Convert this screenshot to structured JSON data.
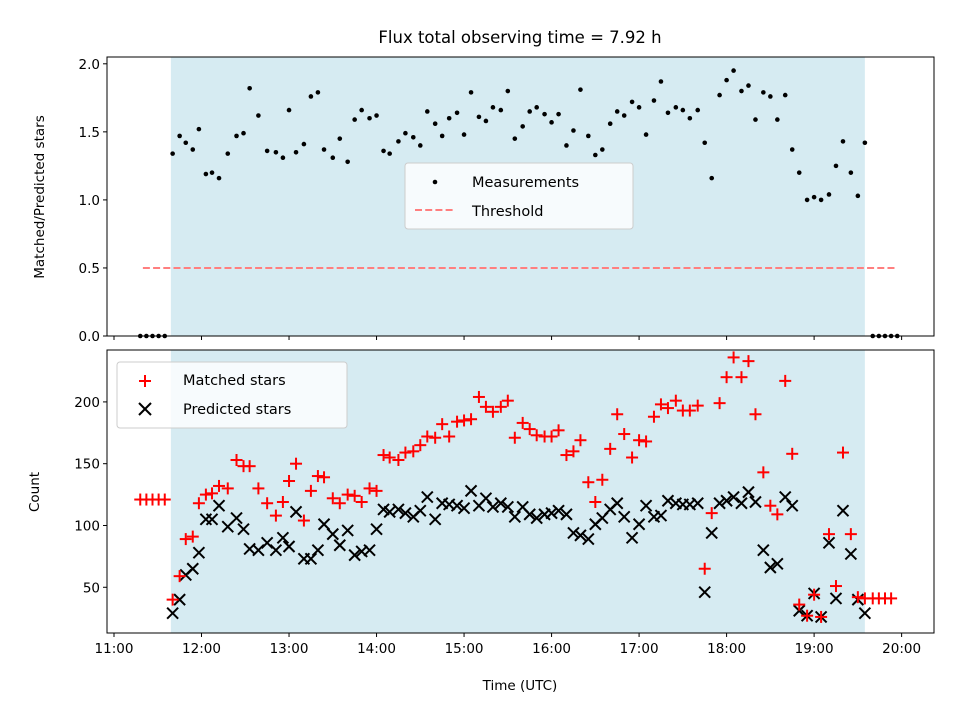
{
  "title": "Flux total observing time = 7.92 h",
  "chart_data": [
    {
      "type": "scatter",
      "ylabel": "Matched/Predicted stars",
      "xlim": [
        10.92,
        20.37
      ],
      "ylim": [
        0,
        2.05
      ],
      "yticks": [
        0.0,
        0.5,
        1.0,
        1.5,
        2.0
      ],
      "ytick_labels": [
        "0.0",
        "0.5",
        "1.0",
        "1.5",
        "2.0"
      ],
      "shaded_span": [
        11.65,
        19.58
      ],
      "shade_color": "#add8e6",
      "legend_position": "center",
      "series": [
        {
          "name": "Measurements",
          "marker": "dot",
          "color": "#000000",
          "points": [
            [
              11.3,
              0
            ],
            [
              11.37,
              0
            ],
            [
              11.44,
              0
            ],
            [
              11.51,
              0
            ],
            [
              11.58,
              0
            ],
            [
              11.67,
              1.34
            ],
            [
              11.75,
              1.47
            ],
            [
              11.82,
              1.42
            ],
            [
              11.9,
              1.37
            ],
            [
              11.97,
              1.52
            ],
            [
              12.05,
              1.19
            ],
            [
              12.12,
              1.2
            ],
            [
              12.2,
              1.16
            ],
            [
              12.3,
              1.34
            ],
            [
              12.4,
              1.47
            ],
            [
              12.48,
              1.49
            ],
            [
              12.55,
              1.82
            ],
            [
              12.65,
              1.62
            ],
            [
              12.75,
              1.36
            ],
            [
              12.85,
              1.35
            ],
            [
              12.93,
              1.31
            ],
            [
              13.0,
              1.66
            ],
            [
              13.08,
              1.35
            ],
            [
              13.17,
              1.41
            ],
            [
              13.25,
              1.76
            ],
            [
              13.33,
              1.79
            ],
            [
              13.4,
              1.37
            ],
            [
              13.5,
              1.31
            ],
            [
              13.58,
              1.45
            ],
            [
              13.67,
              1.28
            ],
            [
              13.75,
              1.59
            ],
            [
              13.83,
              1.66
            ],
            [
              13.92,
              1.6
            ],
            [
              14.0,
              1.62
            ],
            [
              14.08,
              1.36
            ],
            [
              14.15,
              1.34
            ],
            [
              14.25,
              1.43
            ],
            [
              14.33,
              1.49
            ],
            [
              14.42,
              1.46
            ],
            [
              14.5,
              1.4
            ],
            [
              14.58,
              1.65
            ],
            [
              14.67,
              1.56
            ],
            [
              14.75,
              1.47
            ],
            [
              14.83,
              1.6
            ],
            [
              14.92,
              1.64
            ],
            [
              15.0,
              1.48
            ],
            [
              15.08,
              1.79
            ],
            [
              15.17,
              1.61
            ],
            [
              15.25,
              1.58
            ],
            [
              15.33,
              1.68
            ],
            [
              15.42,
              1.66
            ],
            [
              15.5,
              1.8
            ],
            [
              15.58,
              1.45
            ],
            [
              15.67,
              1.54
            ],
            [
              15.75,
              1.65
            ],
            [
              15.83,
              1.68
            ],
            [
              15.92,
              1.63
            ],
            [
              16.0,
              1.57
            ],
            [
              16.08,
              1.63
            ],
            [
              16.17,
              1.4
            ],
            [
              16.25,
              1.51
            ],
            [
              16.33,
              1.81
            ],
            [
              16.42,
              1.47
            ],
            [
              16.5,
              1.33
            ],
            [
              16.58,
              1.37
            ],
            [
              16.67,
              1.56
            ],
            [
              16.75,
              1.65
            ],
            [
              16.83,
              1.62
            ],
            [
              16.92,
              1.72
            ],
            [
              17.0,
              1.68
            ],
            [
              17.08,
              1.48
            ],
            [
              17.17,
              1.73
            ],
            [
              17.25,
              1.87
            ],
            [
              17.33,
              1.64
            ],
            [
              17.42,
              1.68
            ],
            [
              17.5,
              1.66
            ],
            [
              17.58,
              1.6
            ],
            [
              17.67,
              1.66
            ],
            [
              17.75,
              1.42
            ],
            [
              17.83,
              1.16
            ],
            [
              17.92,
              1.77
            ],
            [
              18.0,
              1.88
            ],
            [
              18.08,
              1.95
            ],
            [
              18.17,
              1.8
            ],
            [
              18.25,
              1.84
            ],
            [
              18.33,
              1.59
            ],
            [
              18.42,
              1.79
            ],
            [
              18.5,
              1.76
            ],
            [
              18.58,
              1.59
            ],
            [
              18.67,
              1.77
            ],
            [
              18.75,
              1.37
            ],
            [
              18.83,
              1.2
            ],
            [
              18.92,
              1.0
            ],
            [
              19.0,
              1.02
            ],
            [
              19.08,
              1.0
            ],
            [
              19.17,
              1.04
            ],
            [
              19.25,
              1.25
            ],
            [
              19.33,
              1.43
            ],
            [
              19.42,
              1.2
            ],
            [
              19.5,
              1.03
            ],
            [
              19.58,
              1.42
            ],
            [
              19.67,
              0
            ],
            [
              19.74,
              0
            ],
            [
              19.81,
              0
            ],
            [
              19.88,
              0
            ],
            [
              19.95,
              0
            ]
          ]
        },
        {
          "name": "Threshold",
          "marker": "dashed-line",
          "color": "#ff7f7f",
          "x": [
            11.33,
            19.92
          ],
          "values": [
            0.5,
            0.5
          ]
        }
      ]
    },
    {
      "type": "scatter",
      "xlabel": "Time (UTC)",
      "ylabel": "Count",
      "xlim": [
        10.92,
        20.37
      ],
      "ylim": [
        13,
        242
      ],
      "xticks": [
        11,
        12,
        13,
        14,
        15,
        16,
        17,
        18,
        19,
        20
      ],
      "xtick_labels": [
        "11:00",
        "12:00",
        "13:00",
        "14:00",
        "15:00",
        "16:00",
        "17:00",
        "18:00",
        "19:00",
        "20:00"
      ],
      "yticks": [
        50,
        100,
        150,
        200
      ],
      "ytick_labels": [
        "50",
        "100",
        "150",
        "200"
      ],
      "shaded_span": [
        11.65,
        19.58
      ],
      "shade_color": "#add8e6",
      "legend_position": "upper left",
      "series": [
        {
          "name": "Matched stars",
          "marker": "plus",
          "color": "#ff0000",
          "values": [
            121,
            121,
            121,
            121,
            121,
            40,
            59,
            89,
            91,
            118,
            125,
            126,
            132,
            130,
            153,
            148,
            148,
            130,
            118,
            108,
            119,
            136,
            150,
            104,
            128,
            140,
            139,
            122,
            118,
            125,
            124,
            119,
            130,
            128,
            157,
            155,
            153,
            159,
            160,
            165,
            172,
            171,
            182,
            172,
            184,
            185,
            186,
            204,
            196,
            192,
            196,
            201,
            171,
            183,
            178,
            173,
            172,
            172,
            177,
            157,
            160,
            169,
            135,
            119,
            137,
            162,
            190,
            174,
            155,
            169,
            168,
            188,
            198,
            195,
            201,
            193,
            193,
            197,
            65,
            110,
            199,
            220,
            236,
            220,
            233,
            190,
            143,
            116,
            109,
            217,
            158,
            36,
            27,
            44,
            26,
            93,
            51,
            159,
            93,
            42,
            41,
            41,
            41,
            41,
            41
          ]
        },
        {
          "name": "Predicted stars",
          "marker": "x",
          "color": "#000000",
          "values": [
            null,
            null,
            null,
            null,
            null,
            29,
            40,
            60,
            65,
            78,
            105,
            105,
            116,
            99,
            106,
            97,
            81,
            80,
            86,
            80,
            90,
            83,
            111,
            73,
            73,
            80,
            101,
            93,
            84,
            96,
            76,
            79,
            80,
            97,
            113,
            111,
            113,
            110,
            107,
            112,
            123,
            105,
            118,
            117,
            116,
            114,
            128,
            116,
            122,
            115,
            118,
            115,
            107,
            115,
            109,
            106,
            109,
            110,
            112,
            109,
            94,
            92,
            89,
            101,
            106,
            113,
            118,
            107,
            90,
            101,
            116,
            107,
            108,
            120,
            118,
            117,
            117,
            118,
            46,
            94,
            118,
            120,
            123,
            118,
            127,
            119,
            80,
            66,
            69,
            123,
            116,
            31,
            27,
            45,
            26,
            86,
            41,
            112,
            77,
            40,
            29,
            null,
            null,
            null,
            null
          ]
        }
      ]
    }
  ]
}
